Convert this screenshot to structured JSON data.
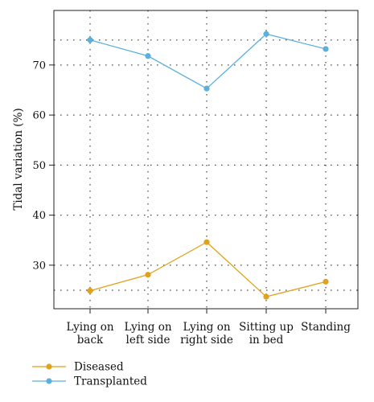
{
  "chart_data": {
    "type": "line",
    "title": "",
    "xlabel": "",
    "ylabel": "Tidal variation (%)",
    "categories": [
      [
        "Lying on",
        "back"
      ],
      [
        "Lying on",
        "left side"
      ],
      [
        "Lying on",
        "right side"
      ],
      [
        "Sitting up",
        "in bed"
      ],
      [
        "Standing"
      ]
    ],
    "yticks": [
      30,
      40,
      50,
      60,
      70
    ],
    "ylim": [
      21.3,
      80.9
    ],
    "grid": true,
    "legend_position": "bottom-left",
    "series": [
      {
        "name": "Diseased",
        "color": "#E0A21A",
        "values": [
          24.9,
          28.1,
          34.6,
          23.7,
          26.7
        ]
      },
      {
        "name": "Transplanted",
        "color": "#5BB0DE",
        "values": [
          75.0,
          71.8,
          65.3,
          76.2,
          73.2
        ]
      }
    ]
  }
}
